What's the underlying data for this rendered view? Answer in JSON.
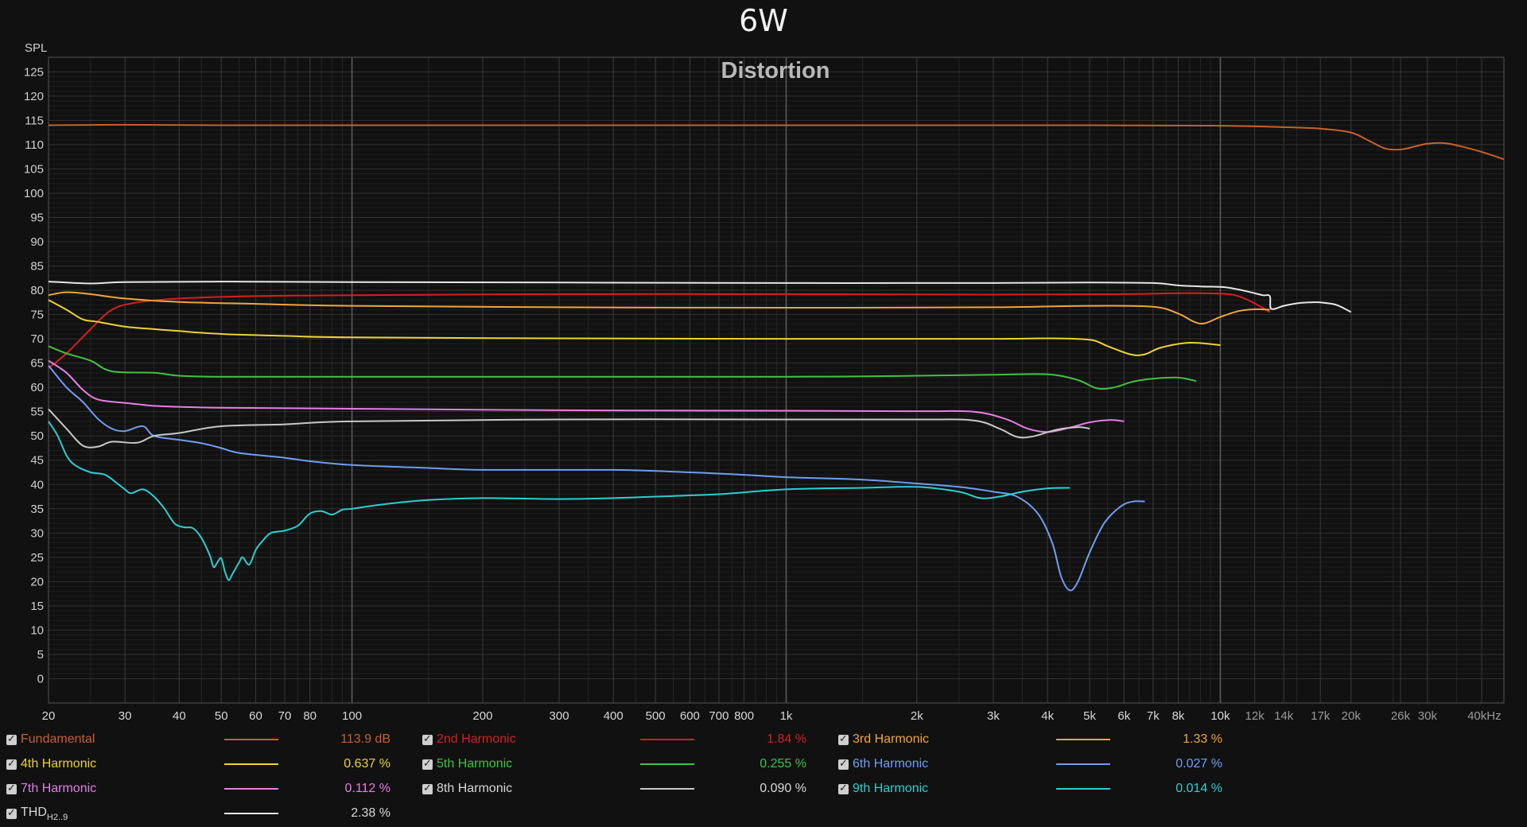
{
  "page": {
    "title": "6W"
  },
  "chart_data": {
    "type": "line",
    "title": "Distortion",
    "ylabel": "SPL",
    "xlabel": "",
    "xscale": "log",
    "xlim": [
      20,
      45000
    ],
    "ylim": [
      -5,
      128
    ],
    "x_ticks": [
      {
        "v": 20,
        "l": "20"
      },
      {
        "v": 30,
        "l": "30"
      },
      {
        "v": 40,
        "l": "40"
      },
      {
        "v": 50,
        "l": "50"
      },
      {
        "v": 60,
        "l": "60"
      },
      {
        "v": 70,
        "l": "70"
      },
      {
        "v": 80,
        "l": "80"
      },
      {
        "v": 100,
        "l": "100"
      },
      {
        "v": 200,
        "l": "200"
      },
      {
        "v": 300,
        "l": "300"
      },
      {
        "v": 400,
        "l": "400"
      },
      {
        "v": 500,
        "l": "500"
      },
      {
        "v": 600,
        "l": "600"
      },
      {
        "v": 700,
        "l": "700"
      },
      {
        "v": 800,
        "l": "800"
      },
      {
        "v": 1000,
        "l": "1k"
      },
      {
        "v": 2000,
        "l": "2k"
      },
      {
        "v": 3000,
        "l": "3k"
      },
      {
        "v": 4000,
        "l": "4k"
      },
      {
        "v": 5000,
        "l": "5k"
      },
      {
        "v": 6000,
        "l": "6k"
      },
      {
        "v": 7000,
        "l": "7k"
      },
      {
        "v": 8000,
        "l": "8k"
      },
      {
        "v": 10000,
        "l": "10k"
      },
      {
        "v": 12000,
        "l": "12k"
      },
      {
        "v": 14000,
        "l": "14k"
      },
      {
        "v": 17000,
        "l": "17k"
      },
      {
        "v": 20000,
        "l": "20k"
      },
      {
        "v": 26000,
        "l": "26k"
      },
      {
        "v": 30000,
        "l": "30k"
      },
      {
        "v": 40000,
        "l": "40kHz"
      }
    ],
    "y_ticks": [
      0,
      5,
      10,
      15,
      20,
      25,
      30,
      35,
      40,
      45,
      50,
      55,
      60,
      65,
      70,
      75,
      80,
      85,
      90,
      95,
      100,
      105,
      110,
      115,
      120,
      125
    ],
    "grid": true,
    "series": [
      {
        "name": "Fundamental",
        "color": "#c8602a",
        "value": "113.9 dB",
        "points": [
          [
            20,
            114
          ],
          [
            30,
            114.1
          ],
          [
            50,
            114
          ],
          [
            100,
            114
          ],
          [
            1000,
            114
          ],
          [
            5000,
            114
          ],
          [
            10000,
            113.9
          ],
          [
            14000,
            113.6
          ],
          [
            17000,
            113.3
          ],
          [
            20000,
            112.5
          ],
          [
            22000,
            110.8
          ],
          [
            24000,
            109.2
          ],
          [
            26000,
            109.0
          ],
          [
            28000,
            109.6
          ],
          [
            30000,
            110.2
          ],
          [
            33000,
            110.3
          ],
          [
            36000,
            109.6
          ],
          [
            40000,
            108.5
          ],
          [
            45000,
            107
          ]
        ]
      },
      {
        "name": "2nd Harmonic",
        "color": "#d42020",
        "value": "1.84 %",
        "points": [
          [
            20,
            64
          ],
          [
            22,
            67
          ],
          [
            25,
            72
          ],
          [
            28,
            76
          ],
          [
            32,
            77.5
          ],
          [
            40,
            78.3
          ],
          [
            60,
            78.8
          ],
          [
            100,
            79
          ],
          [
            300,
            79.2
          ],
          [
            1000,
            79.2
          ],
          [
            3000,
            79.1
          ],
          [
            6000,
            79.2
          ],
          [
            8000,
            79.4
          ],
          [
            10000,
            79.3
          ],
          [
            11000,
            78.8
          ],
          [
            12000,
            77.3
          ],
          [
            13000,
            75.5
          ]
        ]
      },
      {
        "name": "3rd Harmonic",
        "color": "#f2a53a",
        "value": "1.33 %",
        "points": [
          [
            20,
            79
          ],
          [
            22,
            79.6
          ],
          [
            25,
            79.2
          ],
          [
            30,
            78.3
          ],
          [
            40,
            77.6
          ],
          [
            60,
            77.2
          ],
          [
            100,
            76.8
          ],
          [
            300,
            76.5
          ],
          [
            1000,
            76.4
          ],
          [
            3000,
            76.5
          ],
          [
            5000,
            76.8
          ],
          [
            7000,
            76.6
          ],
          [
            8000,
            75.2
          ],
          [
            8700,
            73.5
          ],
          [
            9200,
            73.2
          ],
          [
            10000,
            74.5
          ],
          [
            11000,
            75.7
          ],
          [
            12000,
            76.1
          ],
          [
            13000,
            76
          ]
        ]
      },
      {
        "name": "4th Harmonic",
        "color": "#ecd235",
        "value": "0.637 %",
        "points": [
          [
            20,
            78
          ],
          [
            22,
            76
          ],
          [
            24,
            74
          ],
          [
            26,
            73.5
          ],
          [
            30,
            72.5
          ],
          [
            35,
            72
          ],
          [
            40,
            71.6
          ],
          [
            50,
            71
          ],
          [
            70,
            70.6
          ],
          [
            100,
            70.3
          ],
          [
            300,
            70.1
          ],
          [
            1000,
            70
          ],
          [
            3000,
            70
          ],
          [
            4000,
            70.1
          ],
          [
            5000,
            69.8
          ],
          [
            5500,
            68.5
          ],
          [
            6200,
            66.8
          ],
          [
            6700,
            66.8
          ],
          [
            7300,
            68.2
          ],
          [
            8500,
            69.2
          ],
          [
            10000,
            68.7
          ]
        ]
      },
      {
        "name": "5th Harmonic",
        "color": "#42c242",
        "value": "0.255 %",
        "points": [
          [
            20,
            68.5
          ],
          [
            22,
            67
          ],
          [
            25,
            65.5
          ],
          [
            28,
            63.3
          ],
          [
            35,
            63
          ],
          [
            40,
            62.4
          ],
          [
            50,
            62.2
          ],
          [
            100,
            62.2
          ],
          [
            1000,
            62.2
          ],
          [
            2000,
            62.4
          ],
          [
            3000,
            62.6
          ],
          [
            4000,
            62.7
          ],
          [
            4700,
            61.5
          ],
          [
            5200,
            59.8
          ],
          [
            5700,
            60
          ],
          [
            6300,
            61.2
          ],
          [
            7000,
            61.8
          ],
          [
            8000,
            62
          ],
          [
            8800,
            61.3
          ]
        ]
      },
      {
        "name": "6th Harmonic",
        "color": "#6f9ef2",
        "value": "0.027 %",
        "points": [
          [
            20,
            64.5
          ],
          [
            22,
            60
          ],
          [
            24,
            57
          ],
          [
            26,
            53.5
          ],
          [
            28,
            51.5
          ],
          [
            30,
            51
          ],
          [
            33,
            52
          ],
          [
            35,
            50
          ],
          [
            40,
            49.2
          ],
          [
            45,
            48.5
          ],
          [
            50,
            47.5
          ],
          [
            55,
            46.5
          ],
          [
            70,
            45.5
          ],
          [
            80,
            44.8
          ],
          [
            100,
            44
          ],
          [
            150,
            43.4
          ],
          [
            200,
            43
          ],
          [
            400,
            43
          ],
          [
            600,
            42.5
          ],
          [
            800,
            42
          ],
          [
            1000,
            41.5
          ],
          [
            1500,
            41
          ],
          [
            2000,
            40.2
          ],
          [
            2500,
            39.5
          ],
          [
            3000,
            38.5
          ],
          [
            3400,
            37.5
          ],
          [
            3800,
            34
          ],
          [
            4100,
            28
          ],
          [
            4300,
            21
          ],
          [
            4500,
            18.2
          ],
          [
            4700,
            20
          ],
          [
            5000,
            26
          ],
          [
            5400,
            32
          ],
          [
            5900,
            35.5
          ],
          [
            6300,
            36.5
          ],
          [
            6700,
            36.5
          ]
        ]
      },
      {
        "name": "7th Harmonic",
        "color": "#e67ee6",
        "value": "0.112 %",
        "points": [
          [
            20,
            65.5
          ],
          [
            22,
            63
          ],
          [
            24,
            59.5
          ],
          [
            26,
            57.5
          ],
          [
            30,
            56.8
          ],
          [
            35,
            56.2
          ],
          [
            40,
            56
          ],
          [
            50,
            55.8
          ],
          [
            100,
            55.6
          ],
          [
            300,
            55.3
          ],
          [
            1000,
            55.2
          ],
          [
            2000,
            55.1
          ],
          [
            2700,
            55
          ],
          [
            3200,
            53.5
          ],
          [
            3600,
            51.5
          ],
          [
            4000,
            50.8
          ],
          [
            4500,
            51.7
          ],
          [
            5000,
            52.8
          ],
          [
            5600,
            53.3
          ],
          [
            6000,
            53
          ]
        ]
      },
      {
        "name": "8th Harmonic",
        "color": "#c8c8c8",
        "value": "0.090 %",
        "points": [
          [
            20,
            55.5
          ],
          [
            22,
            51.5
          ],
          [
            24,
            48
          ],
          [
            26,
            47.8
          ],
          [
            28,
            48.8
          ],
          [
            32,
            48.6
          ],
          [
            35,
            50
          ],
          [
            40,
            50.6
          ],
          [
            50,
            52
          ],
          [
            70,
            52.4
          ],
          [
            100,
            53
          ],
          [
            300,
            53.4
          ],
          [
            1000,
            53.4
          ],
          [
            2000,
            53.4
          ],
          [
            2700,
            53.2
          ],
          [
            3100,
            51.5
          ],
          [
            3400,
            49.8
          ],
          [
            3700,
            49.9
          ],
          [
            4200,
            51.3
          ],
          [
            4700,
            51.8
          ],
          [
            5000,
            51.5
          ]
        ]
      },
      {
        "name": "9th Harmonic",
        "color": "#2ad0d0",
        "value": "0.014 %",
        "points": [
          [
            20,
            53
          ],
          [
            21,
            50
          ],
          [
            22,
            46
          ],
          [
            23,
            44
          ],
          [
            25,
            42.5
          ],
          [
            27,
            42
          ],
          [
            29,
            40
          ],
          [
            30,
            39
          ],
          [
            31,
            38.2
          ],
          [
            33,
            39
          ],
          [
            35,
            37.5
          ],
          [
            37,
            35
          ],
          [
            39,
            32
          ],
          [
            41,
            31.2
          ],
          [
            43,
            31
          ],
          [
            45,
            29
          ],
          [
            47,
            25.5
          ],
          [
            48,
            23
          ],
          [
            49,
            24
          ],
          [
            50,
            24.8
          ],
          [
            51,
            22
          ],
          [
            52,
            20.3
          ],
          [
            53,
            21.5
          ],
          [
            55,
            24
          ],
          [
            56,
            25
          ],
          [
            58,
            23.5
          ],
          [
            60,
            26.5
          ],
          [
            62,
            28.2
          ],
          [
            65,
            30
          ],
          [
            70,
            30.5
          ],
          [
            75,
            31.5
          ],
          [
            80,
            34
          ],
          [
            85,
            34.5
          ],
          [
            90,
            33.8
          ],
          [
            95,
            34.8
          ],
          [
            100,
            35
          ],
          [
            120,
            36
          ],
          [
            150,
            36.8
          ],
          [
            200,
            37.2
          ],
          [
            300,
            37
          ],
          [
            400,
            37.2
          ],
          [
            500,
            37.5
          ],
          [
            700,
            38
          ],
          [
            1000,
            39
          ],
          [
            1500,
            39.3
          ],
          [
            2000,
            39.5
          ],
          [
            2500,
            38.5
          ],
          [
            2800,
            37.2
          ],
          [
            3100,
            37.5
          ],
          [
            3500,
            38.5
          ],
          [
            4000,
            39.2
          ],
          [
            4500,
            39.3
          ]
        ]
      },
      {
        "name": "THD",
        "sub": "H2..9",
        "color": "#e8e8e8",
        "value": "2.38 %",
        "points": [
          [
            20,
            81.8
          ],
          [
            25,
            81.4
          ],
          [
            30,
            81.7
          ],
          [
            50,
            81.8
          ],
          [
            100,
            81.7
          ],
          [
            300,
            81.6
          ],
          [
            1000,
            81.5
          ],
          [
            3000,
            81.5
          ],
          [
            5000,
            81.6
          ],
          [
            7000,
            81.5
          ],
          [
            8000,
            81
          ],
          [
            9000,
            80.8
          ],
          [
            10000,
            80.7
          ],
          [
            10500,
            80.5
          ],
          [
            11500,
            79.8
          ],
          [
            12500,
            79
          ],
          [
            13000,
            78.8
          ],
          [
            13100,
            76.2
          ],
          [
            14000,
            76.8
          ],
          [
            15000,
            77.3
          ],
          [
            16000,
            77.5
          ],
          [
            17000,
            77.5
          ],
          [
            18500,
            77
          ],
          [
            20000,
            75.5
          ]
        ]
      }
    ]
  }
}
